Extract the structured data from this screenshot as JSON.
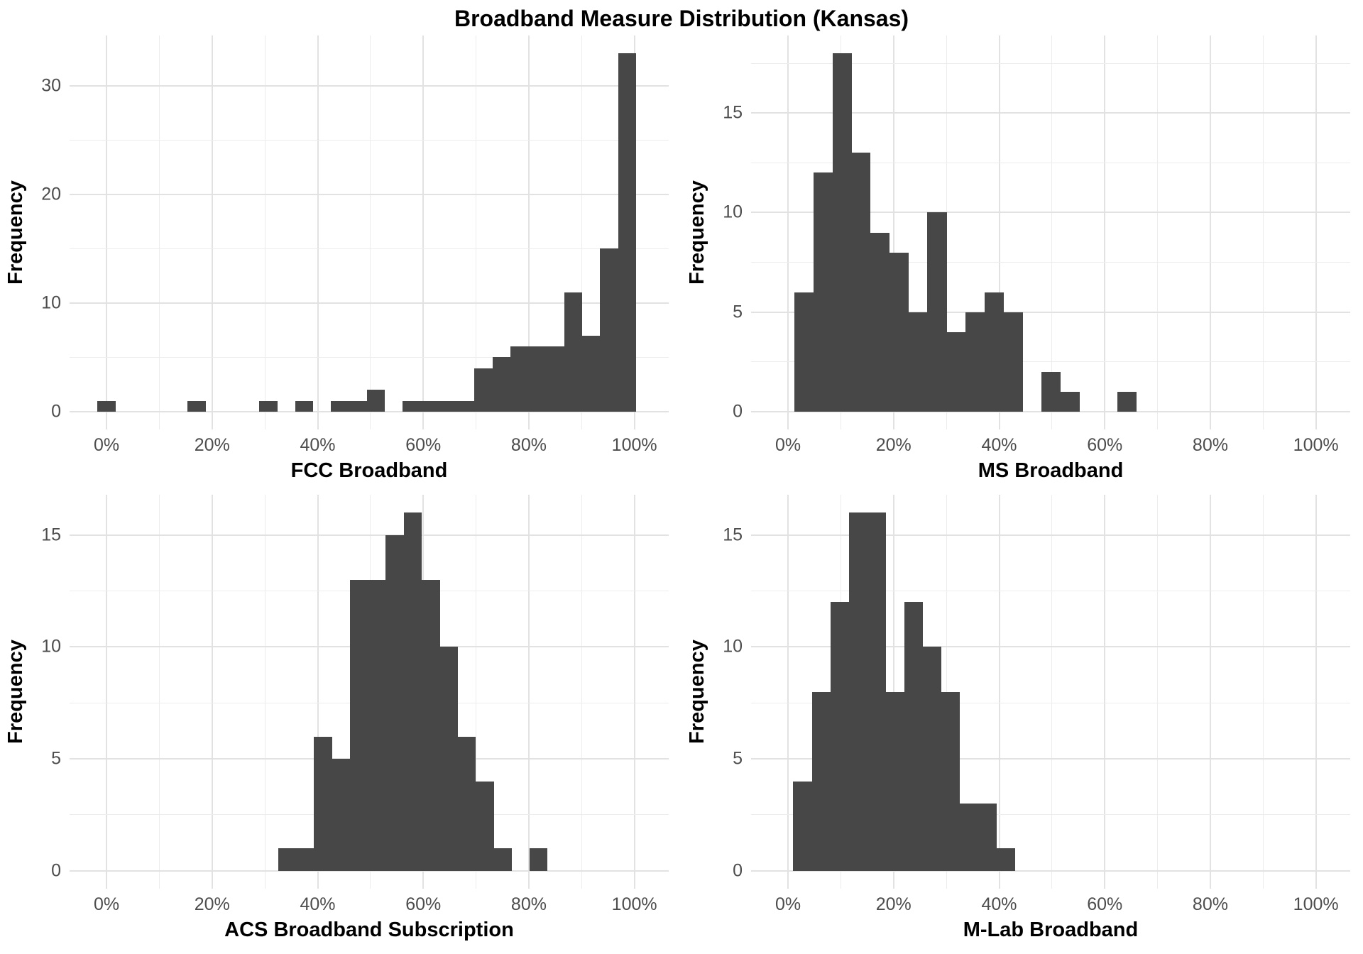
{
  "title": "Broadband Measure Distribution (Kansas)",
  "colors": {
    "bar": "#474747",
    "grid_major": "#e2e2e2",
    "grid_minor": "#ededed",
    "tick_text": "#4d4d4d",
    "label_text": "#000000",
    "background": "#ffffff"
  },
  "x_axis": {
    "tick_values": [
      0,
      20,
      40,
      60,
      80,
      100
    ],
    "tick_labels": [
      "0%",
      "20%",
      "40%",
      "60%",
      "80%",
      "100%"
    ],
    "minor_values": [
      10,
      30,
      50,
      70,
      90
    ],
    "range_min": -7,
    "range_max": 106.5
  },
  "chart_data": [
    {
      "type": "bar",
      "subtype": "histogram",
      "panel": "top-left",
      "xlabel": "FCC Broadband",
      "ylabel": "Frequency",
      "y_ticks": [
        0,
        10,
        20,
        30
      ],
      "y_tick_step": 10,
      "y_data_max": 33,
      "ylim": [
        0,
        34.65
      ],
      "x_unit": "percent",
      "bin_start": -1.7,
      "bin_width": 3.4,
      "counts": [
        1,
        0,
        0,
        0,
        0,
        1,
        0,
        0,
        0,
        1,
        0,
        1,
        0,
        1,
        1,
        2,
        0,
        1,
        1,
        1,
        1,
        4,
        5,
        6,
        6,
        6,
        11,
        7,
        15,
        33
      ]
    },
    {
      "type": "bar",
      "subtype": "histogram",
      "panel": "top-right",
      "xlabel": "MS Broadband",
      "ylabel": "Frequency",
      "y_ticks": [
        0,
        5,
        10,
        15
      ],
      "y_tick_step": 5,
      "y_data_max": 18,
      "ylim": [
        0,
        18.9
      ],
      "x_unit": "percent",
      "bin_start": 1.2,
      "bin_width": 3.6,
      "counts": [
        6,
        12,
        18,
        13,
        9,
        8,
        5,
        10,
        4,
        5,
        6,
        5,
        0,
        2,
        1,
        0,
        0,
        1
      ]
    },
    {
      "type": "bar",
      "subtype": "histogram",
      "panel": "bottom-left",
      "xlabel": "ACS Broadband Subscription",
      "ylabel": "Frequency",
      "y_ticks": [
        0,
        5,
        10,
        15
      ],
      "y_tick_step": 5,
      "y_data_max": 16,
      "ylim": [
        0,
        16.8
      ],
      "x_unit": "percent",
      "bin_start": 32.5,
      "bin_width": 3.4,
      "counts": [
        1,
        1,
        6,
        5,
        13,
        13,
        15,
        16,
        13,
        10,
        6,
        4,
        1,
        0,
        1
      ]
    },
    {
      "type": "bar",
      "subtype": "histogram",
      "panel": "bottom-right",
      "xlabel": "M-Lab Broadband",
      "ylabel": "Frequency",
      "y_ticks": [
        0,
        5,
        10,
        15
      ],
      "y_tick_step": 5,
      "y_data_max": 16,
      "ylim": [
        0,
        16.8
      ],
      "x_unit": "percent",
      "bin_start": 1.0,
      "bin_width": 3.5,
      "counts": [
        4,
        8,
        12,
        16,
        16,
        8,
        12,
        10,
        8,
        3,
        3,
        1
      ]
    }
  ]
}
